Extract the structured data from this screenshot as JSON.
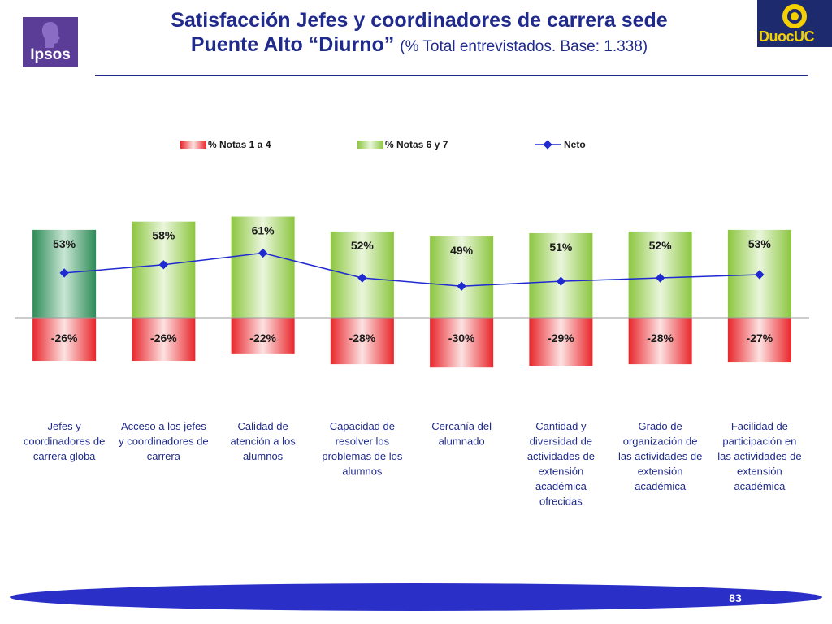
{
  "header": {
    "title_line1": "Satisfacción Jefes y coordinadores de carrera sede",
    "title_line2": "Puente Alto “Diurno”",
    "subtitle": "(% Total entrevistados. Base: 1.338)",
    "logo_left": "Ipsos",
    "logo_right": "DuocUC"
  },
  "footer": {
    "page_number": "83"
  },
  "colors": {
    "title": "#1f2a8c",
    "negative_bar": "#e8262b",
    "positive_bar": "#8cc63f",
    "first_positive_bar": "#2e8b57",
    "net_line": "#1f2ad0"
  },
  "chart_data": {
    "type": "bar",
    "legend_position": "top",
    "grid": false,
    "categories": [
      "Jefes y coordinadores de carrera globa",
      "Acceso a los jefes y coordinadores de carrera",
      "Calidad de atención a los alumnos",
      "Capacidad de resolver los problemas de los alumnos",
      "Cercanía del alumnado",
      "Cantidad y diversidad de actividades de extensión académica ofrecidas",
      "Grado de organización de las actividades de extensión académica",
      "Facilidad de participación en las actividades de extensión académica"
    ],
    "category_lines": [
      [
        "Jefes y",
        "coordinadores de",
        "carrera globa"
      ],
      [
        "Acceso a los jefes",
        "y coordinadores de",
        "carrera"
      ],
      [
        "Calidad de",
        "atención a los",
        "alumnos"
      ],
      [
        "Capacidad de",
        "resolver los",
        "problemas de los",
        "alumnos"
      ],
      [
        "Cercanía del",
        "alumnado"
      ],
      [
        "Cantidad y",
        "diversidad de",
        "actividades de",
        "extensión",
        "académica",
        "ofrecidas"
      ],
      [
        "Grado de",
        "organización de",
        "las actividades de",
        "extensión",
        "académica"
      ],
      [
        "Facilidad de",
        "participación en",
        "las actividades de",
        "extensión",
        "académica"
      ]
    ],
    "series": [
      {
        "name": "% Notas 1 a 4",
        "values": [
          -26,
          -26,
          -22,
          -28,
          -30,
          -29,
          -28,
          -27
        ],
        "labels": [
          "-26%",
          "-26%",
          "-22%",
          "-28%",
          "-30%",
          "-29%",
          "-28%",
          "-27%"
        ]
      },
      {
        "name": "% Notas 6 y 7",
        "values": [
          53,
          58,
          61,
          52,
          49,
          51,
          52,
          53
        ],
        "labels": [
          "53%",
          "58%",
          "61%",
          "52%",
          "49%",
          "51%",
          "52%",
          "53%"
        ]
      },
      {
        "name": "Neto",
        "values": [
          27,
          32,
          39,
          24,
          19,
          22,
          24,
          26
        ]
      }
    ],
    "ylim": [
      -30,
      61
    ]
  }
}
